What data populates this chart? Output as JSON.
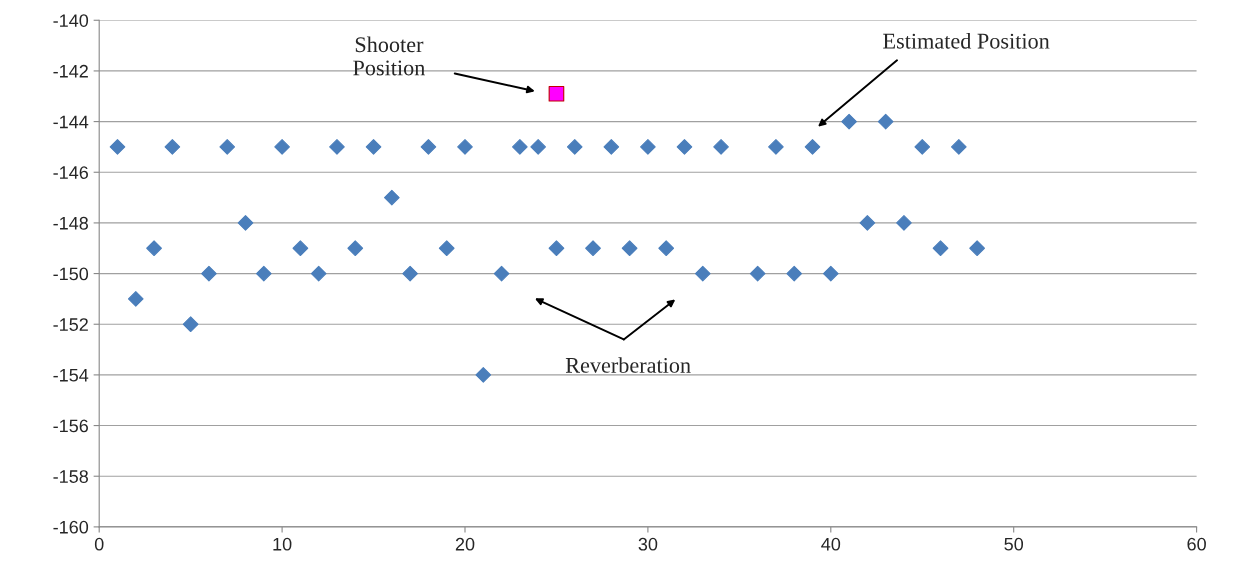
{
  "chart_data": {
    "type": "scatter",
    "xlim": [
      0,
      60
    ],
    "xticks": [
      0,
      10,
      20,
      30,
      40,
      50,
      60
    ],
    "ylim": [
      -160,
      -140
    ],
    "yticks": [
      -160,
      -158,
      -156,
      -154,
      -152,
      -150,
      -148,
      -146,
      -144,
      -142,
      -140
    ],
    "grid": "y",
    "legend": false,
    "series": [
      {
        "color": "#4a7ebb",
        "marker": "diamond",
        "x": [
          1,
          2,
          3,
          4,
          5,
          6,
          7,
          8,
          9,
          10,
          11,
          12,
          13,
          14,
          15,
          16,
          17,
          18,
          19,
          20,
          21,
          22,
          23,
          24,
          25,
          26,
          27,
          28,
          29,
          30,
          31,
          32,
          33,
          34,
          36,
          37,
          38,
          39,
          40,
          41,
          42,
          43,
          44,
          45,
          46,
          47,
          48
        ],
        "values": [
          -145,
          -151,
          -149,
          -145,
          -152,
          -150,
          -145,
          -148,
          -150,
          -145,
          -149,
          -150,
          -145,
          -149,
          -145,
          -147,
          -150,
          -145,
          -149,
          -145,
          -154,
          -150,
          -145,
          -145,
          -149,
          -145,
          -149,
          -145,
          -149,
          -145,
          -149,
          -145,
          -150,
          -145,
          -150,
          -145,
          -150,
          -145,
          -150,
          -144,
          -148,
          -144,
          -148,
          -145,
          -149,
          -145,
          -149
        ]
      },
      {
        "color": "#ff00ff",
        "marker": "square",
        "x": [
          25
        ],
        "values": [
          -142.9
        ]
      }
    ],
    "annotations": [
      "Shooter\nPosition",
      "Estimated Position",
      "Reverberation"
    ]
  }
}
